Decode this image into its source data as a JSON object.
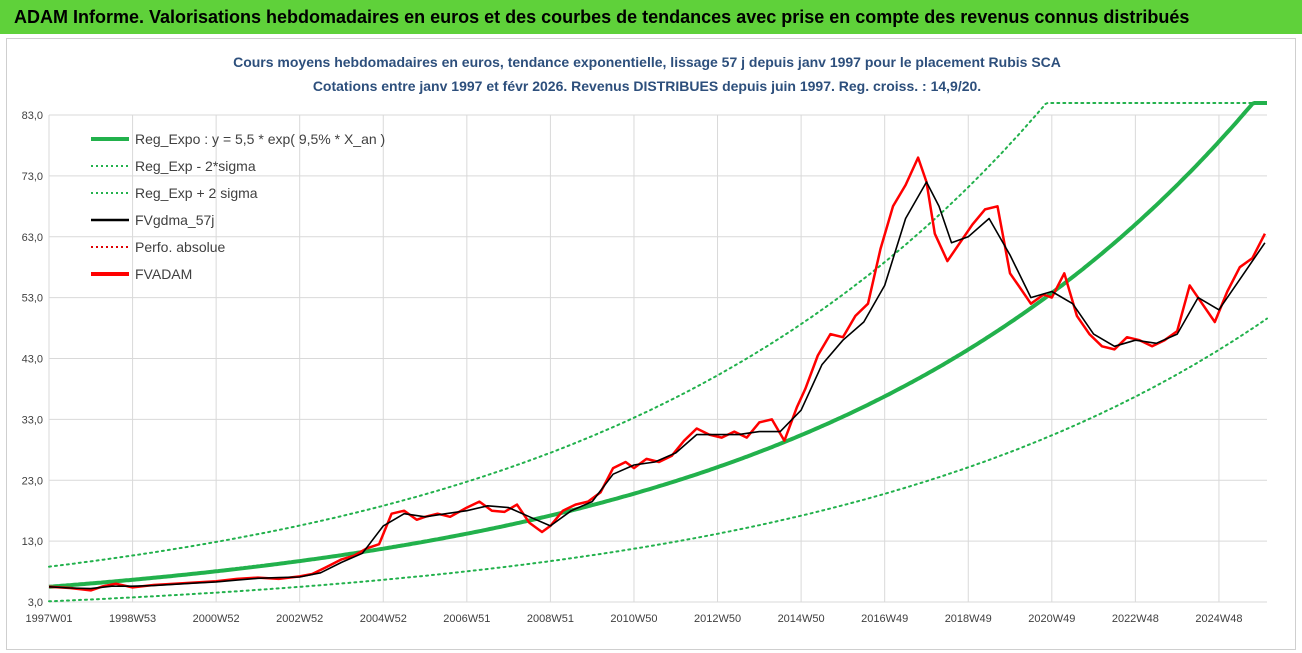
{
  "banner": {
    "title": "ADAM Informe. Valorisations hebdomadaires en euros et des courbes de tendances avec prise en compte des revenus connus distribués"
  },
  "chart_data": {
    "type": "line",
    "title_line1": "Cours moyens hebdomadaires en euros, tendance exponentielle, lissage 57 j depuis janv 1997 pour le placement Rubis SCA",
    "title_line2": "Cotations entre janv 1997 et févr 2026. Revenus DISTRIBUES depuis juin 1997. Reg. croiss. : 14,9/20.",
    "ylim": [
      3,
      83
    ],
    "xlim": [
      1997.0,
      2026.15
    ],
    "y_ticks": [
      "3,0",
      "13,0",
      "23,0",
      "33,0",
      "43,0",
      "53,0",
      "63,0",
      "73,0",
      "83,0"
    ],
    "y_tick_values": [
      3,
      13,
      23,
      33,
      43,
      53,
      63,
      73,
      83
    ],
    "x_ticks": [
      "1997W01",
      "1998W53",
      "2000W52",
      "2002W52",
      "2004W52",
      "2006W51",
      "2008W51",
      "2010W50",
      "2012W50",
      "2014W50",
      "2016W49",
      "2018W49",
      "2020W49",
      "2022W48",
      "2024W48"
    ],
    "x_tick_values": [
      1997.0,
      1999.0,
      2001.0,
      2003.0,
      2005.0,
      2007.0,
      2009.0,
      2011.0,
      2013.0,
      2015.0,
      2017.0,
      2019.0,
      2021.0,
      2023.0,
      2025.0
    ],
    "grid": true,
    "legend_position": "top-left",
    "legend": [
      {
        "label": "Reg_Expo : y = 5,5 * exp( 9,5% *  X_an )",
        "color": "#22b14c",
        "style": "solid-thick"
      },
      {
        "label": "Reg_Exp - 2*sigma",
        "color": "#22b14c",
        "style": "dotted"
      },
      {
        "label": "Reg_Exp + 2 sigma",
        "color": "#22b14c",
        "style": "dotted"
      },
      {
        "label": "FVgdma_57j",
        "color": "#000000",
        "style": "solid"
      },
      {
        "label": "Perfo. absolue",
        "color": "#e00000",
        "style": "dotted"
      },
      {
        "label": "FVADAM",
        "color": "#ff0000",
        "style": "solid-thick"
      }
    ],
    "regression": {
      "a": 5.5,
      "b": 0.095,
      "x0": 1997.0,
      "lower_factor": 0.565,
      "upper_factor": 1.6
    },
    "series": [
      {
        "name": "FVADAM",
        "x": [
          1997.0,
          1997.5,
          1998.0,
          1998.3,
          1998.6,
          1999.0,
          1999.5,
          2000.0,
          2000.5,
          2001.0,
          2001.5,
          2002.0,
          2002.5,
          2003.0,
          2003.3,
          2003.6,
          2004.0,
          2004.3,
          2004.6,
          2004.9,
          2005.2,
          2005.5,
          2005.8,
          2006.0,
          2006.3,
          2006.6,
          2007.0,
          2007.3,
          2007.6,
          2007.9,
          2008.2,
          2008.5,
          2008.8,
          2009.0,
          2009.3,
          2009.6,
          2009.9,
          2010.2,
          2010.5,
          2010.8,
          2011.0,
          2011.3,
          2011.6,
          2011.9,
          2012.2,
          2012.5,
          2012.8,
          2013.1,
          2013.4,
          2013.7,
          2014.0,
          2014.3,
          2014.6,
          2014.9,
          2015.1,
          2015.4,
          2015.7,
          2016.0,
          2016.3,
          2016.6,
          2016.9,
          2017.2,
          2017.5,
          2017.8,
          2018.0,
          2018.2,
          2018.5,
          2018.8,
          2019.1,
          2019.4,
          2019.7,
          2020.0,
          2020.2,
          2020.5,
          2020.8,
          2021.0,
          2021.3,
          2021.6,
          2021.9,
          2022.2,
          2022.5,
          2022.8,
          2023.1,
          2023.4,
          2023.7,
          2024.0,
          2024.3,
          2024.6,
          2024.9,
          2025.2,
          2025.5,
          2025.8,
          2026.1
        ],
        "values": [
          5.5,
          5.3,
          4.9,
          5.6,
          6.0,
          5.4,
          5.8,
          6.0,
          6.2,
          6.4,
          6.8,
          7.0,
          6.8,
          7.2,
          7.6,
          8.6,
          10.0,
          10.6,
          11.8,
          12.5,
          17.5,
          18.0,
          16.5,
          17.0,
          17.5,
          17.0,
          18.5,
          19.5,
          18.0,
          17.8,
          19.0,
          16.0,
          14.5,
          15.5,
          18.0,
          19.0,
          19.5,
          21.0,
          25.0,
          26.0,
          25.0,
          26.5,
          26.0,
          27.0,
          29.5,
          31.5,
          30.5,
          30.0,
          31.0,
          30.0,
          32.5,
          33.0,
          29.5,
          35.0,
          38.0,
          43.5,
          47.0,
          46.5,
          50.0,
          52.0,
          61.0,
          68.0,
          71.5,
          76.0,
          72.0,
          63.5,
          59.0,
          62.0,
          65.0,
          67.5,
          68.0,
          57.0,
          55.0,
          52.0,
          53.5,
          53.0,
          57.0,
          50.0,
          47.0,
          45.0,
          44.5,
          46.5,
          46.0,
          45.0,
          46.0,
          47.5,
          55.0,
          52.0,
          49.0,
          54.0,
          58.0,
          59.5,
          63.5
        ]
      },
      {
        "name": "FVgdma_57j",
        "x": [
          1997.0,
          1997.5,
          1998.0,
          1998.5,
          1999.0,
          1999.5,
          2000.0,
          2000.5,
          2001.0,
          2001.5,
          2002.0,
          2002.5,
          2003.0,
          2003.5,
          2004.0,
          2004.5,
          2005.0,
          2005.5,
          2006.0,
          2006.5,
          2007.0,
          2007.5,
          2008.0,
          2008.5,
          2009.0,
          2009.5,
          2010.0,
          2010.5,
          2011.0,
          2011.5,
          2012.0,
          2012.5,
          2013.0,
          2013.5,
          2014.0,
          2014.5,
          2015.0,
          2015.5,
          2016.0,
          2016.5,
          2017.0,
          2017.5,
          2018.0,
          2018.3,
          2018.6,
          2019.0,
          2019.5,
          2020.0,
          2020.5,
          2021.0,
          2021.5,
          2022.0,
          2022.5,
          2023.0,
          2023.5,
          2024.0,
          2024.5,
          2025.0,
          2025.5,
          2026.1
        ],
        "values": [
          5.5,
          5.3,
          5.2,
          5.6,
          5.6,
          5.7,
          5.9,
          6.1,
          6.3,
          6.6,
          6.9,
          7.0,
          7.1,
          7.8,
          9.5,
          11.0,
          15.5,
          17.5,
          17.0,
          17.5,
          18.0,
          18.8,
          18.5,
          17.0,
          15.5,
          18.0,
          19.5,
          24.0,
          25.5,
          26.0,
          27.5,
          30.5,
          30.5,
          30.5,
          31.0,
          31.0,
          34.5,
          42.0,
          46.0,
          49.0,
          55.0,
          66.0,
          72.0,
          68.0,
          62.0,
          63.0,
          66.0,
          60.0,
          53.0,
          54.0,
          52.0,
          47.0,
          45.0,
          46.0,
          45.5,
          47.0,
          53.0,
          51.0,
          56.0,
          62.0
        ]
      }
    ]
  }
}
